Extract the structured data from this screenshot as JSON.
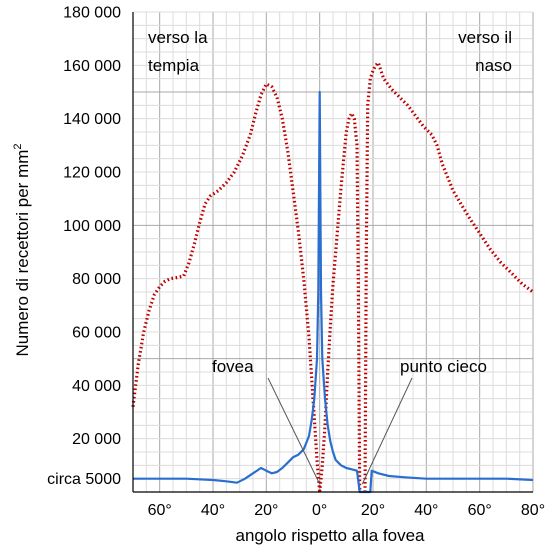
{
  "chart_data": {
    "type": "line",
    "xlabel": "angolo rispetto alla fovea",
    "ylabel": "Numero di recettori per mm",
    "ylabel_sup": "2",
    "xlim": [
      -70,
      80
    ],
    "ylim": [
      0,
      180000
    ],
    "x_ticks": [
      {
        "value": -60,
        "label": "60°"
      },
      {
        "value": -40,
        "label": "40°"
      },
      {
        "value": -20,
        "label": "20°"
      },
      {
        "value": 0,
        "label": "0°"
      },
      {
        "value": 20,
        "label": "20°"
      },
      {
        "value": 40,
        "label": "40°"
      },
      {
        "value": 60,
        "label": "60°"
      },
      {
        "value": 80,
        "label": "80°"
      }
    ],
    "y_ticks": [
      {
        "value": 5000,
        "label": "circa 5000"
      },
      {
        "value": 20000,
        "label": "20 000"
      },
      {
        "value": 40000,
        "label": "40 000"
      },
      {
        "value": 60000,
        "label": "60 000"
      },
      {
        "value": 80000,
        "label": "80 000"
      },
      {
        "value": 100000,
        "label": "100 000"
      },
      {
        "value": 120000,
        "label": "120 000"
      },
      {
        "value": 140000,
        "label": "140 000"
      },
      {
        "value": 160000,
        "label": "160 000"
      },
      {
        "value": 180000,
        "label": "180 000"
      }
    ],
    "grid": true,
    "corner_left": [
      "verso la",
      "tempia"
    ],
    "corner_right": [
      "verso il",
      "naso"
    ],
    "annotations": {
      "fovea": {
        "text": "fovea",
        "target_x": 0,
        "target_y": 3000
      },
      "blind_spot": {
        "text": "punto cieco",
        "target_x": 16,
        "target_y": 3000
      }
    },
    "series": [
      {
        "style": "dotted",
        "color": "#c00000",
        "segments": [
          [
            [
              -70,
              32000
            ],
            [
              -68,
              48000
            ],
            [
              -66,
              60000
            ],
            [
              -64,
              68000
            ],
            [
              -62,
              74000
            ],
            [
              -60,
              77000
            ],
            [
              -58,
              79000
            ],
            [
              -56,
              80000
            ],
            [
              -53,
              80500
            ],
            [
              -51,
              81000
            ],
            [
              -49,
              86000
            ],
            [
              -47,
              93000
            ],
            [
              -45,
              101000
            ],
            [
              -43,
              108000
            ],
            [
              -41,
              111000
            ],
            [
              -38,
              113000
            ],
            [
              -35,
              116000
            ],
            [
              -32,
              120000
            ],
            [
              -29,
              126000
            ],
            [
              -26,
              134000
            ],
            [
              -24,
              142000
            ],
            [
              -22,
              149000
            ],
            [
              -20,
              153000
            ],
            [
              -18,
              152000
            ],
            [
              -16,
              148000
            ],
            [
              -14,
              140000
            ],
            [
              -12,
              128000
            ],
            [
              -10,
              113000
            ],
            [
              -8,
              98000
            ],
            [
              -6,
              80000
            ],
            [
              -4,
              58000
            ],
            [
              -2.5,
              35000
            ],
            [
              -1,
              12000
            ],
            [
              0,
              0
            ]
          ],
          [
            [
              0,
              0
            ],
            [
              1,
              10000
            ],
            [
              2,
              25000
            ],
            [
              3,
              45000
            ],
            [
              4,
              62000
            ],
            [
              5,
              78000
            ],
            [
              6,
              90000
            ],
            [
              7,
              102000
            ],
            [
              8,
              114000
            ],
            [
              9,
              125000
            ],
            [
              10,
              135000
            ],
            [
              11,
              140000
            ],
            [
              12,
              142000
            ],
            [
              13,
              140000
            ],
            [
              14,
              130000
            ],
            [
              14.5,
              80000
            ],
            [
              15,
              0
            ]
          ],
          [
            [
              17,
              0
            ],
            [
              17.5,
              90000
            ],
            [
              18,
              145000
            ],
            [
              19,
              155000
            ],
            [
              20,
              158000
            ],
            [
              21,
              160000
            ],
            [
              22,
              161000
            ],
            [
              24,
              155000
            ],
            [
              27,
              151000
            ],
            [
              30,
              148000
            ],
            [
              33,
              145000
            ],
            [
              36,
              141000
            ],
            [
              39,
              137000
            ],
            [
              42,
              134000
            ],
            [
              44,
              130000
            ],
            [
              46,
              123000
            ],
            [
              48,
              118000
            ],
            [
              50,
              113000
            ],
            [
              53,
              108000
            ],
            [
              56,
              103000
            ],
            [
              60,
              97000
            ],
            [
              64,
              91000
            ],
            [
              68,
              86000
            ],
            [
              72,
              82000
            ],
            [
              76,
              78000
            ],
            [
              80,
              75000
            ]
          ]
        ]
      },
      {
        "style": "solid",
        "color": "#2a6fcf",
        "segments": [
          [
            [
              -70,
              5000
            ],
            [
              -60,
              5000
            ],
            [
              -50,
              5000
            ],
            [
              -40,
              4500
            ],
            [
              -35,
              4000
            ],
            [
              -31,
              3500
            ],
            [
              -28,
              5000
            ],
            [
              -25,
              7000
            ],
            [
              -22,
              9000
            ],
            [
              -20,
              8000
            ],
            [
              -18,
              7000
            ],
            [
              -16,
              7500
            ],
            [
              -14,
              9000
            ],
            [
              -12,
              11000
            ],
            [
              -10,
              13000
            ],
            [
              -8,
              14000
            ],
            [
              -6,
              16000
            ],
            [
              -4,
              21000
            ],
            [
              -3,
              27000
            ],
            [
              -2,
              35000
            ],
            [
              -1,
              50000
            ],
            [
              -0.5,
              75000
            ],
            [
              0,
              150000
            ],
            [
              0.5,
              75000
            ],
            [
              1,
              50000
            ],
            [
              2,
              35000
            ],
            [
              3,
              25000
            ],
            [
              4,
              19000
            ],
            [
              5,
              15000
            ],
            [
              6,
              12000
            ],
            [
              8,
              10000
            ],
            [
              10,
              9000
            ],
            [
              12,
              8500
            ],
            [
              14,
              8000
            ],
            [
              15,
              0
            ],
            [
              19,
              0
            ],
            [
              19.5,
              8000
            ],
            [
              22,
              7000
            ],
            [
              26,
              6000
            ],
            [
              32,
              5500
            ],
            [
              40,
              5000
            ],
            [
              50,
              5000
            ],
            [
              60,
              5000
            ],
            [
              70,
              5000
            ],
            [
              80,
              4500
            ]
          ]
        ]
      }
    ]
  }
}
